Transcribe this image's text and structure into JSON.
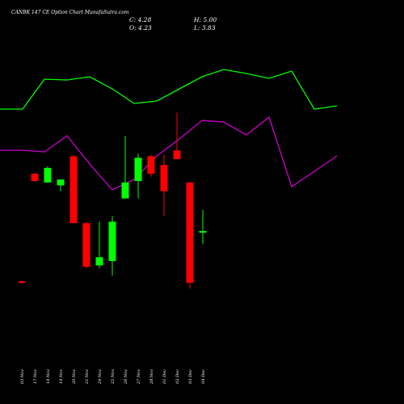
{
  "chart_data": {
    "type": "candlestick",
    "title": "CANBK 147 CE Option  Chart MunafaSutra.com",
    "ohlc_readout": {
      "C": "4.28",
      "H": "5.00",
      "O": "4.23",
      "L": "3.83"
    },
    "ohlc_labels": {
      "C": "C: 4.28",
      "H": "H: 5.00",
      "O": "O: 4.23",
      "L": "L: 3.83"
    },
    "x": [
      "03 Nov",
      "17 Nov",
      "18 Nov",
      "19 Nov",
      "20 Nov",
      "21 Nov",
      "24 Nov",
      "25 Nov",
      "26 Nov",
      "27 Nov",
      "28 Nov",
      "01 Dec",
      "02 Dec",
      "03 Dec",
      "04 Dec"
    ],
    "candles": [
      {
        "date": "03 Nov",
        "open": 2.55,
        "high": 2.57,
        "low": 2.51,
        "close": 2.53
      },
      {
        "date": "17 Nov",
        "open": 6.25,
        "high": 6.28,
        "low": 5.97,
        "close": 6.0
      },
      {
        "date": "18 Nov",
        "open": 5.95,
        "high": 6.5,
        "low": 5.93,
        "close": 6.45
      },
      {
        "date": "19 Nov",
        "open": 5.85,
        "high": 6.05,
        "low": 5.65,
        "close": 6.05
      },
      {
        "date": "20 Nov",
        "open": 6.85,
        "high": 6.9,
        "low": 4.55,
        "close": 4.55
      },
      {
        "date": "21 Nov",
        "open": 4.55,
        "high": 4.6,
        "low": 3.0,
        "close": 3.05
      },
      {
        "date": "24 Nov",
        "open": 3.1,
        "high": 4.6,
        "low": 3.0,
        "close": 3.38
      },
      {
        "date": "25 Nov",
        "open": 3.25,
        "high": 4.8,
        "low": 2.75,
        "close": 4.6
      },
      {
        "date": "26 Nov",
        "open": 5.4,
        "high": 7.55,
        "low": 5.4,
        "close": 5.95
      },
      {
        "date": "27 Nov",
        "open": 6.0,
        "high": 6.95,
        "low": 5.4,
        "close": 6.8
      },
      {
        "date": "28 Nov",
        "open": 6.85,
        "high": 6.9,
        "low": 6.15,
        "close": 6.25
      },
      {
        "date": "01 Dec",
        "open": 6.55,
        "high": 6.9,
        "low": 4.8,
        "close": 5.65
      },
      {
        "date": "02 Dec",
        "open": 7.05,
        "high": 8.35,
        "low": 6.8,
        "close": 6.75
      },
      {
        "date": "03 Dec",
        "open": 5.95,
        "high": 5.95,
        "low": 2.3,
        "close": 2.5
      },
      {
        "date": "04 Dec",
        "open": 4.23,
        "high": 5.0,
        "low": 3.83,
        "close": 4.28
      }
    ],
    "upper_line": [
      135,
      135,
      98,
      99,
      95,
      110,
      128,
      125,
      110,
      95,
      86,
      91,
      97,
      88,
      135,
      131
    ],
    "lower_line": [
      186,
      186,
      188,
      168,
      203,
      235,
      222,
      193,
      172,
      149,
      151,
      167,
      145,
      231,
      212,
      193
    ],
    "colors": {
      "background": "#000000",
      "up": "#00ff00",
      "down": "#ff0000",
      "upper_line": "#00ff00",
      "lower_line": "#cc00cc",
      "text": "#ffffff"
    }
  }
}
